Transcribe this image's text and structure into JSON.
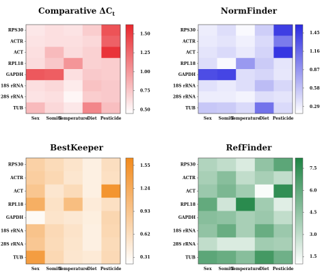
{
  "chart_data": [
    {
      "type": "heatmap",
      "title": "Comparative ΔC",
      "title_subscript": "t",
      "x_categories": [
        "Sex",
        "Somite",
        "Temperature",
        "Diet",
        "Pesticide"
      ],
      "y_categories": [
        "RPS30",
        "ACTR",
        "ACT",
        "RPL18",
        "GAPDH",
        "18S rRNA",
        "28S rRNA",
        "TUB"
      ],
      "values": [
        [
          0.58,
          0.62,
          0.6,
          0.72,
          1.38
        ],
        [
          0.6,
          0.62,
          0.62,
          0.66,
          1.3
        ],
        [
          0.62,
          0.82,
          0.64,
          0.7,
          1.55
        ],
        [
          0.64,
          0.75,
          1.02,
          0.7,
          0.72
        ],
        [
          1.35,
          1.32,
          0.62,
          0.74,
          0.72
        ],
        [
          0.62,
          0.66,
          0.56,
          0.78,
          0.74
        ],
        [
          0.6,
          0.62,
          0.5,
          0.72,
          0.74
        ],
        [
          0.82,
          0.66,
          0.58,
          1.1,
          0.8
        ]
      ],
      "colorbar_ticks": [
        "1.50",
        "1.25",
        "1.00",
        "0.75",
        "0.50"
      ],
      "colorbar_range": [
        0.45,
        1.62
      ],
      "color_low": "#ffffff",
      "color_high": "#e8262c"
    },
    {
      "type": "heatmap",
      "title": "NormFinder",
      "x_categories": [
        "Sex",
        "Somite",
        "Temperature",
        "Diet",
        "Pesticide"
      ],
      "y_categories": [
        "RPS30",
        "ACTR",
        "ACT",
        "RPL18",
        "GAPDH",
        "18S rRNA",
        "28S rRNA",
        "TUB"
      ],
      "values": [
        [
          0.3,
          0.4,
          0.22,
          0.5,
          1.45
        ],
        [
          0.32,
          0.36,
          0.28,
          0.42,
          1.05
        ],
        [
          0.36,
          0.42,
          0.32,
          0.46,
          1.5
        ],
        [
          0.4,
          0.22,
          0.85,
          0.52,
          0.35
        ],
        [
          1.35,
          1.4,
          0.4,
          0.45,
          0.34
        ],
        [
          0.38,
          0.32,
          0.4,
          0.62,
          0.44
        ],
        [
          0.3,
          0.3,
          0.26,
          0.4,
          0.36
        ],
        [
          0.55,
          0.52,
          0.42,
          1.1,
          0.42
        ]
      ],
      "colorbar_ticks": [
        "1.45",
        "1.16",
        "0.87",
        "0.58",
        "0.29"
      ],
      "colorbar_range": [
        0.18,
        1.58
      ],
      "color_low": "#ffffff",
      "color_high": "#2a2ae0"
    },
    {
      "type": "heatmap",
      "title": "BestKeeper",
      "x_categories": [
        "Sex",
        "Somite",
        "Temperature",
        "Diet",
        "Pesticide"
      ],
      "y_categories": [
        "RPS30",
        "ACTR",
        "ACT",
        "RPL18",
        "GAPDH",
        "18S rRNA",
        "28S rRNA",
        "TUB"
      ],
      "values": [
        [
          0.78,
          0.66,
          0.55,
          0.4,
          0.62
        ],
        [
          0.82,
          0.7,
          0.52,
          0.4,
          0.6
        ],
        [
          0.92,
          0.52,
          0.66,
          0.4,
          1.52
        ],
        [
          1.2,
          0.58,
          1.02,
          0.46,
          0.6
        ],
        [
          0.28,
          0.55,
          0.5,
          0.42,
          0.72
        ],
        [
          0.95,
          0.68,
          0.56,
          0.4,
          0.7
        ],
        [
          0.9,
          0.66,
          0.54,
          0.4,
          0.66
        ],
        [
          1.42,
          0.7,
          0.52,
          0.48,
          0.68
        ]
      ],
      "colorbar_ticks": [
        "1.55",
        "1.24",
        "0.93",
        "0.62",
        "0.31"
      ],
      "colorbar_range": [
        0.22,
        1.65
      ],
      "color_low": "#ffffff",
      "color_high": "#f28a1c"
    },
    {
      "type": "heatmap",
      "title": "RefFinder",
      "x_categories": [
        "Sex",
        "Somite",
        "Temperature",
        "Diet",
        "Pesticide"
      ],
      "y_categories": [
        "RPS30",
        "ACTR",
        "ACT",
        "RPL18",
        "GAPDH",
        "18S rRNA",
        "28S rRNA",
        "TUB"
      ],
      "values": [
        [
          3.5,
          3.0,
          2.2,
          4.5,
          6.2
        ],
        [
          3.8,
          4.8,
          3.0,
          3.8,
          3.0
        ],
        [
          4.2,
          5.2,
          4.0,
          1.2,
          7.6
        ],
        [
          6.0,
          2.5,
          7.8,
          4.0,
          2.0
        ],
        [
          4.8,
          4.6,
          3.8,
          4.2,
          3.0
        ],
        [
          4.5,
          5.8,
          3.8,
          5.8,
          4.2
        ],
        [
          3.0,
          2.2,
          2.2,
          4.0,
          3.8
        ],
        [
          6.2,
          5.8,
          4.8,
          7.0,
          5.6
        ]
      ],
      "colorbar_ticks": [
        "7.5",
        "6.0",
        "4.5",
        "3.0",
        "1.5"
      ],
      "colorbar_range": [
        1.0,
        8.2
      ],
      "color_low": "#ffffff",
      "color_high": "#1e8444"
    }
  ]
}
